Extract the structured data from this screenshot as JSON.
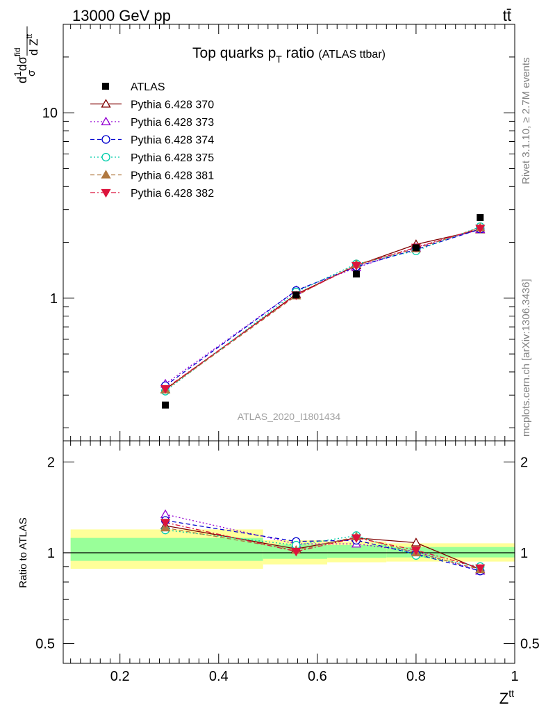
{
  "header": {
    "energy_label": "13000 GeV pp",
    "process_label": "tt̄",
    "side_text_top": "Rivet 3.1.10, ≥ 2.7M events",
    "side_text_bottom": "mcplots.cern.ch [arXiv:1306.3436]",
    "analysis_id": "ATLAS_2020_I1801434"
  },
  "colors": {
    "data": "#000000",
    "band_outer": "#ffff99",
    "band_inner": "#99ff99",
    "ref_line": "#000000"
  },
  "chart_data": [
    {
      "panel": "main",
      "type": "line",
      "title": "Top quarks p",
      "title_sub": "T",
      "title_mid": " ratio ",
      "title_small": "(ATLAS ttbar)",
      "ylabel_parts": [
        "d",
        "1",
        "σ",
        "dσ",
        "fid",
        "d Z",
        "tt"
      ],
      "yscale": "log",
      "ylim": [
        0.17,
        30
      ],
      "xlim": [
        0.085,
        1.0
      ],
      "y_ticks": [
        {
          "value": 1,
          "label": "1"
        },
        {
          "value": 10,
          "label": "10"
        }
      ],
      "x": [
        0.292,
        0.557,
        0.679,
        0.8,
        0.93
      ],
      "data": {
        "name": "ATLAS",
        "values": [
          0.265,
          1.04,
          1.35,
          1.87,
          2.72
        ]
      },
      "series": [
        {
          "name": "Pythia 6.428 370",
          "color": "#800000",
          "marker": "triangle-up-open",
          "dash": "solid",
          "values": [
            0.322,
            1.05,
            1.5,
            1.95,
            2.34
          ]
        },
        {
          "name": "Pythia 6.428 373",
          "color": "#9400d3",
          "marker": "triangle-up-open",
          "dash": "dotted",
          "values": [
            0.345,
            1.1,
            1.46,
            1.87,
            2.35
          ]
        },
        {
          "name": "Pythia 6.428 374",
          "color": "#0000cd",
          "marker": "circle-open",
          "dash": "dashed",
          "values": [
            0.337,
            1.1,
            1.48,
            1.83,
            2.36
          ]
        },
        {
          "name": "Pythia 6.428 375",
          "color": "#00cdaa",
          "marker": "circle-open",
          "dash": "dotted",
          "values": [
            0.315,
            1.08,
            1.53,
            1.8,
            2.43
          ]
        },
        {
          "name": "Pythia 6.428 381",
          "color": "#b07840",
          "marker": "triangle-up-filled",
          "dash": "dashed",
          "values": [
            0.32,
            1.03,
            1.52,
            1.85,
            2.4
          ]
        },
        {
          "name": "Pythia 6.428 382",
          "color": "#dc143c",
          "marker": "triangle-down-filled",
          "dash": "dashdot",
          "values": [
            0.325,
            1.04,
            1.5,
            1.88,
            2.38
          ]
        }
      ]
    },
    {
      "panel": "ratio",
      "type": "line",
      "ylabel": "Ratio to ATLAS",
      "xlabel": "Z",
      "xlabel_sup": "tt",
      "yscale": "log",
      "ylim": [
        0.43,
        2.35
      ],
      "xlim": [
        0.085,
        1.0
      ],
      "x_ticks": [
        {
          "value": 0.2,
          "label": "0.2"
        },
        {
          "value": 0.4,
          "label": "0.4"
        },
        {
          "value": 0.6,
          "label": "0.6"
        },
        {
          "value": 0.8,
          "label": "0.8"
        },
        {
          "value": 1.0,
          "label": "1"
        }
      ],
      "y_ticks": [
        {
          "value": 0.5,
          "label": "0.5"
        },
        {
          "value": 1,
          "label": "1"
        },
        {
          "value": 2,
          "label": "2"
        }
      ],
      "bands": [
        {
          "x0": 0.1,
          "x1": 0.49,
          "outer": [
            0.885,
            1.195
          ],
          "inner": [
            0.94,
            1.12
          ]
        },
        {
          "x0": 0.49,
          "x1": 0.62,
          "outer": [
            0.915,
            1.1
          ],
          "inner": [
            0.955,
            1.065
          ]
        },
        {
          "x0": 0.62,
          "x1": 0.74,
          "outer": [
            0.93,
            1.09
          ],
          "inner": [
            0.962,
            1.06
          ]
        },
        {
          "x0": 0.74,
          "x1": 1.0,
          "outer": [
            0.935,
            1.075
          ],
          "inner": [
            0.965,
            1.045
          ]
        }
      ],
      "x": [
        0.292,
        0.557,
        0.679,
        0.8,
        0.93
      ],
      "series": [
        {
          "name": "Pythia 6.428 370",
          "values": [
            1.23,
            1.03,
            1.12,
            1.08,
            0.88
          ]
        },
        {
          "name": "Pythia 6.428 373",
          "values": [
            1.34,
            1.07,
            1.07,
            1.01,
            0.87
          ]
        },
        {
          "name": "Pythia 6.428 374",
          "values": [
            1.28,
            1.09,
            1.1,
            0.99,
            0.87
          ]
        },
        {
          "name": "Pythia 6.428 375",
          "values": [
            1.19,
            1.06,
            1.14,
            0.98,
            0.9
          ]
        },
        {
          "name": "Pythia 6.428 381",
          "values": [
            1.21,
            1.02,
            1.13,
            1.0,
            0.88
          ]
        },
        {
          "name": "Pythia 6.428 382",
          "values": [
            1.26,
            1.01,
            1.12,
            1.02,
            0.89
          ]
        }
      ]
    }
  ]
}
